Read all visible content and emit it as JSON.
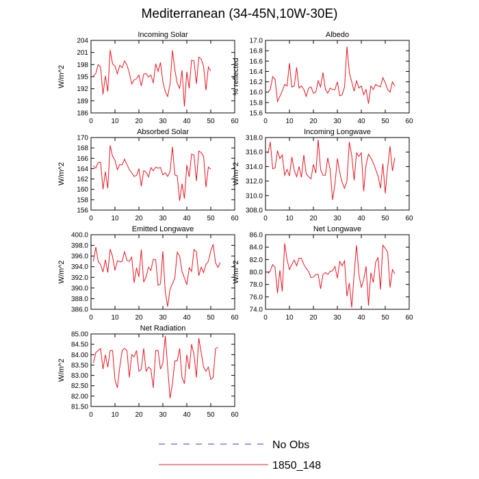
{
  "figure": {
    "title": "Mediterranean (34-45N,10W-30E)"
  },
  "legend": {
    "entries": [
      {
        "label": "No Obs",
        "color": "#3a3acc",
        "dash": true
      },
      {
        "label": "1850_148",
        "color": "#e8141e",
        "dash": false
      }
    ]
  },
  "chart_data": [
    {
      "type": "line",
      "title": "Incoming Solar",
      "ylabel": "W/m^2",
      "xlabel": "",
      "xlim": [
        0,
        60
      ],
      "ylim": [
        186,
        204
      ],
      "xticks": [
        0,
        10,
        20,
        30,
        40,
        50,
        60
      ],
      "yticks": [
        186,
        189,
        192,
        195,
        198,
        201,
        204
      ],
      "yticklabels": [
        "186",
        "189",
        "192",
        "195",
        "198",
        "201",
        "204"
      ],
      "series": [
        {
          "color": "#e8141e",
          "x": [
            1,
            2,
            3,
            4,
            5,
            6,
            7,
            8,
            9,
            10,
            11,
            12,
            13,
            14,
            15,
            16,
            17,
            18,
            19,
            20,
            21,
            22,
            23,
            24,
            25,
            26,
            27,
            28,
            29,
            30,
            31,
            32,
            33,
            34,
            35,
            36,
            37,
            38,
            39,
            40,
            41,
            42,
            43,
            44,
            45,
            46,
            47,
            48,
            49,
            50,
            51,
            52,
            53,
            54
          ],
          "values": [
            195.1,
            195.8,
            198.0,
            197.4,
            190.6,
            195.2,
            191.3,
            201.6,
            198.2,
            197.6,
            195.7,
            197.8,
            197.2,
            198.9,
            197.9,
            195.9,
            193.2,
            194.2,
            194.5,
            195.4,
            192.7,
            195.6,
            195.8,
            194.9,
            195.4,
            193.4,
            198.2,
            196.3,
            198.5,
            193.8,
            191.3,
            190.1,
            193.1,
            201.5,
            196.7,
            193.3,
            192.1,
            196.6,
            187.6,
            196.2,
            192.1,
            199.1,
            198.9,
            193.2,
            199.8,
            199.4,
            197.6,
            191.6,
            197.4,
            196.4,
            null,
            null,
            null,
            null
          ]
        }
      ]
    },
    {
      "type": "line",
      "title": "Albedo",
      "ylabel": "% reflected",
      "xlabel": "",
      "xlim": [
        0,
        60
      ],
      "ylim": [
        15.6,
        17.0
      ],
      "xticks": [
        0,
        10,
        20,
        30,
        40,
        50,
        60
      ],
      "yticks": [
        15.6,
        15.8,
        16.0,
        16.2,
        16.4,
        16.6,
        16.8,
        17.0
      ],
      "yticklabels": [
        "15.6",
        "15.8",
        "16.0",
        "16.2",
        "16.4",
        "16.6",
        "16.8",
        "17.0"
      ],
      "series": [
        {
          "color": "#e8141e",
          "x": [
            1,
            2,
            3,
            4,
            5,
            6,
            7,
            8,
            9,
            10,
            11,
            12,
            13,
            14,
            15,
            16,
            17,
            18,
            19,
            20,
            21,
            22,
            23,
            24,
            25,
            26,
            27,
            28,
            29,
            30,
            31,
            32,
            33,
            34,
            35,
            36,
            37,
            38,
            39,
            40,
            41,
            42,
            43,
            44,
            45,
            46,
            47,
            48,
            49,
            50,
            51,
            52,
            53,
            54
          ],
          "values": [
            16.0,
            16.05,
            16.3,
            16.25,
            15.82,
            15.92,
            16.02,
            16.15,
            16.12,
            16.56,
            16.1,
            16.12,
            16.48,
            16.08,
            16.12,
            16.05,
            15.92,
            16.08,
            16.1,
            15.98,
            16.0,
            16.22,
            16.1,
            16.38,
            16.05,
            15.98,
            16.08,
            16.05,
            16.05,
            16.2,
            15.93,
            15.95,
            16.1,
            16.88,
            16.38,
            16.2,
            16.02,
            16.22,
            16.08,
            16.12,
            15.95,
            16.05,
            15.78,
            16.12,
            16.05,
            16.15,
            16.12,
            16.1,
            16.28,
            16.18,
            16.05,
            16.0,
            16.2,
            16.12
          ]
        }
      ]
    },
    {
      "type": "line",
      "title": "Absorbed Solar",
      "ylabel": "W/m^2",
      "xlabel": "",
      "xlim": [
        0,
        60
      ],
      "ylim": [
        156,
        170
      ],
      "xticks": [
        0,
        10,
        20,
        30,
        40,
        50,
        60
      ],
      "yticks": [
        156,
        158,
        160,
        162,
        164,
        166,
        168,
        170
      ],
      "yticklabels": [
        "156",
        "158",
        "160",
        "162",
        "164",
        "166",
        "168",
        "170"
      ],
      "series": [
        {
          "color": "#e8141e",
          "x": [
            1,
            2,
            3,
            4,
            5,
            6,
            7,
            8,
            9,
            10,
            11,
            12,
            13,
            14,
            15,
            16,
            17,
            18,
            19,
            20,
            21,
            22,
            23,
            24,
            25,
            26,
            27,
            28,
            29,
            30,
            31,
            32,
            33,
            34,
            35,
            36,
            37,
            38,
            39,
            40,
            41,
            42,
            43,
            44,
            45,
            46,
            47,
            48,
            49,
            50,
            51,
            52,
            53,
            54
          ],
          "values": [
            164.5,
            164.1,
            165.2,
            165.2,
            160.0,
            163.4,
            160.2,
            168.5,
            166.4,
            165.6,
            163.8,
            164.8,
            164.7,
            165.8,
            164.8,
            163.8,
            163.2,
            162.5,
            162.7,
            164.0,
            160.6,
            163.6,
            163.3,
            162.4,
            164.2,
            163.6,
            164.3,
            164.1,
            164.2,
            162.8,
            163.2,
            162.5,
            163.4,
            168.2,
            162.8,
            162.6,
            157.8,
            161.1,
            158.2,
            164.7,
            162.4,
            166.8,
            166.6,
            161.6,
            167.4,
            167.1,
            166.4,
            160.4,
            164.3,
            163.9,
            null,
            null,
            null,
            null
          ]
        }
      ]
    },
    {
      "type": "line",
      "title": "Incoming Longwave",
      "ylabel": "W/m^2",
      "xlabel": "",
      "xlim": [
        0,
        60
      ],
      "ylim": [
        308.0,
        318.0
      ],
      "xticks": [
        0,
        10,
        20,
        30,
        40,
        50,
        60
      ],
      "yticks": [
        308,
        310,
        312,
        314,
        316,
        318
      ],
      "yticklabels": [
        "308.0",
        "310.0",
        "312.0",
        "314.0",
        "316.0",
        "318.0"
      ],
      "series": [
        {
          "color": "#e8141e",
          "x": [
            1,
            2,
            3,
            4,
            5,
            6,
            7,
            8,
            9,
            10,
            11,
            12,
            13,
            14,
            15,
            16,
            17,
            18,
            19,
            20,
            21,
            22,
            23,
            24,
            25,
            26,
            27,
            28,
            29,
            30,
            31,
            32,
            33,
            34,
            35,
            36,
            37,
            38,
            39,
            40,
            41,
            42,
            43,
            44,
            45,
            46,
            47,
            48,
            49,
            50,
            51,
            52,
            53,
            54
          ],
          "values": [
            315.8,
            317.4,
            313.7,
            313.8,
            316.2,
            315.1,
            315.6,
            312.8,
            313.6,
            312.7,
            315.3,
            313.5,
            312.6,
            314.0,
            312.5,
            315.6,
            313.0,
            312.6,
            312.3,
            314.3,
            313.1,
            317.7,
            313.6,
            312.8,
            312.8,
            315.2,
            313.6,
            309.4,
            311.6,
            315.1,
            313.2,
            311.8,
            311.0,
            312.0,
            317.4,
            315.5,
            312.1,
            315.9,
            315.4,
            315.9,
            310.6,
            314.3,
            315.7,
            315.2,
            314.5,
            313.6,
            312.7,
            311.0,
            314.4,
            310.3,
            313.9,
            316.8,
            313.4,
            315.2
          ]
        }
      ]
    },
    {
      "type": "line",
      "title": "Emitted Longwave",
      "ylabel": "W/m^2",
      "xlabel": "",
      "xlim": [
        0,
        60
      ],
      "ylim": [
        386.0,
        400.0
      ],
      "xticks": [
        0,
        10,
        20,
        30,
        40,
        50,
        60
      ],
      "yticks": [
        386,
        388,
        390,
        392,
        394,
        396,
        398,
        400
      ],
      "yticklabels": [
        "386.0",
        "388.0",
        "390.0",
        "392.0",
        "394.0",
        "396.0",
        "398.0",
        "400.0"
      ],
      "series": [
        {
          "color": "#e8141e",
          "x": [
            1,
            2,
            3,
            4,
            5,
            6,
            7,
            8,
            9,
            10,
            11,
            12,
            13,
            14,
            15,
            16,
            17,
            18,
            19,
            20,
            21,
            22,
            23,
            24,
            25,
            26,
            27,
            28,
            29,
            30,
            31,
            32,
            33,
            34,
            35,
            36,
            37,
            38,
            39,
            40,
            41,
            42,
            43,
            44,
            45,
            46,
            47,
            48,
            49,
            50,
            51,
            52,
            53,
            54
          ],
          "values": [
            395.0,
            397.7,
            395.0,
            394.4,
            393.0,
            395.3,
            392.9,
            397.3,
            395.9,
            393.3,
            395.1,
            394.9,
            395.0,
            396.8,
            395.2,
            395.0,
            395.8,
            391.0,
            393.8,
            392.1,
            397.2,
            391.1,
            392.1,
            393.9,
            393.3,
            395.4,
            395.3,
            390.5,
            390.8,
            396.9,
            389.3,
            386.5,
            389.8,
            390.8,
            391.9,
            396.7,
            396.0,
            393.1,
            391.9,
            390.6,
            393.8,
            393.1,
            397.2,
            396.8,
            392.3,
            393.9,
            392.9,
            394.4,
            395.0,
            397.0,
            398.2,
            394.7,
            393.9,
            394.8
          ]
        }
      ]
    },
    {
      "type": "line",
      "title": "Net Longwave",
      "ylabel": "W/m^2",
      "xlabel": "",
      "xlim": [
        0,
        60
      ],
      "ylim": [
        74.0,
        86.0
      ],
      "xticks": [
        0,
        10,
        20,
        30,
        40,
        50,
        60
      ],
      "yticks": [
        74,
        76,
        78,
        80,
        82,
        84,
        86
      ],
      "yticklabels": [
        "74.0",
        "76.0",
        "78.0",
        "80.0",
        "82.0",
        "84.0",
        "86.0"
      ],
      "series": [
        {
          "color": "#e8141e",
          "x": [
            1,
            2,
            3,
            4,
            5,
            6,
            7,
            8,
            9,
            10,
            11,
            12,
            13,
            14,
            15,
            16,
            17,
            18,
            19,
            20,
            21,
            22,
            23,
            24,
            25,
            26,
            27,
            28,
            29,
            30,
            31,
            32,
            33,
            34,
            35,
            36,
            37,
            38,
            39,
            40,
            41,
            42,
            43,
            44,
            45,
            46,
            47,
            48,
            49,
            50,
            51,
            52,
            53,
            54
          ],
          "values": [
            79.7,
            80.2,
            81.2,
            80.7,
            76.6,
            80.3,
            76.9,
            84.6,
            82.0,
            80.4,
            81.2,
            81.9,
            81.0,
            82.2,
            82.2,
            81.2,
            80.6,
            80.1,
            79.1,
            79.2,
            79.6,
            79.6,
            77.3,
            79.6,
            79.9,
            79.6,
            80.1,
            80.2,
            80.9,
            79.0,
            81.7,
            81.0,
            81.8,
            76.1,
            78.2,
            74.3,
            79.6,
            84.3,
            79.6,
            77.5,
            78.8,
            80.9,
            74.6,
            79.9,
            78.3,
            81.6,
            82.3,
            77.2,
            84.3,
            83.8,
            83.2,
            77.5,
            80.4,
            79.7
          ]
        }
      ]
    },
    {
      "type": "line",
      "title": "Net Radiation",
      "ylabel": "W/m^2",
      "xlabel": "",
      "xlim": [
        0,
        60
      ],
      "ylim": [
        81.5,
        85.0
      ],
      "xticks": [
        0,
        10,
        20,
        30,
        40,
        50,
        60
      ],
      "yticks": [
        81.5,
        82.0,
        82.5,
        83.0,
        83.5,
        84.0,
        84.5,
        85.0
      ],
      "yticklabels": [
        "81.50",
        "82.00",
        "82.50",
        "83.00",
        "83.50",
        "84.00",
        "84.50",
        "85.00"
      ],
      "series": [
        {
          "color": "#e8141e",
          "x": [
            1,
            2,
            3,
            4,
            5,
            6,
            7,
            8,
            9,
            10,
            11,
            12,
            13,
            14,
            15,
            16,
            17,
            18,
            19,
            20,
            21,
            22,
            23,
            24,
            25,
            26,
            27,
            28,
            29,
            30,
            31,
            32,
            33,
            34,
            35,
            36,
            37,
            38,
            39,
            40,
            41,
            42,
            43,
            44,
            45,
            46,
            47,
            48,
            49,
            50,
            51,
            52,
            53,
            54
          ],
          "values": [
            83.6,
            84.1,
            84.2,
            84.3,
            83.3,
            84.0,
            83.4,
            84.2,
            84.2,
            82.8,
            82.4,
            83.4,
            84.2,
            84.3,
            84.2,
            82.9,
            84.0,
            83.9,
            84.2,
            83.2,
            83.3,
            84.3,
            83.2,
            83.4,
            83.3,
            82.4,
            84.2,
            84.2,
            83.3,
            83.6,
            84.9,
            83.4,
            81.9,
            82.6,
            83.7,
            83.7,
            84.3,
            82.9,
            82.6,
            84.0,
            83.3,
            84.5,
            84.0,
            82.9,
            84.8,
            84.1,
            83.4,
            83.2,
            83.4,
            82.8,
            82.9,
            84.3,
            84.35,
            null
          ]
        }
      ]
    }
  ]
}
